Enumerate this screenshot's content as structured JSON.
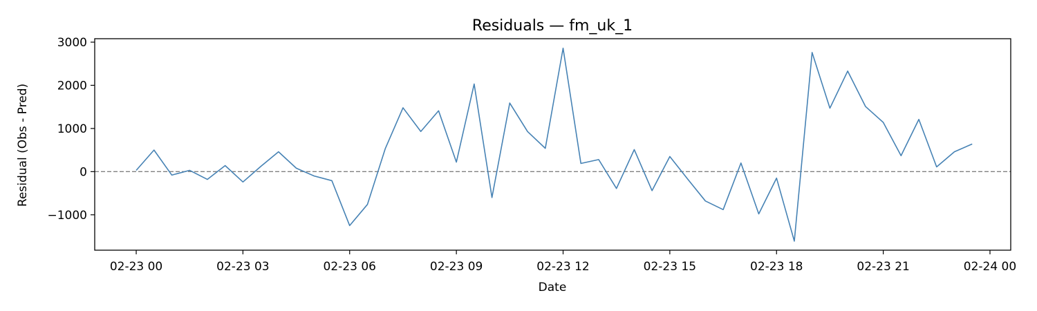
{
  "chart_data": {
    "type": "line",
    "title": "Residuals — fm_uk_1",
    "xlabel": "Date",
    "ylabel": "Residual (Obs - Pred)",
    "x_ticks": [
      "02-23 00",
      "02-23 03",
      "02-23 06",
      "02-23 09",
      "02-23 12",
      "02-23 15",
      "02-23 18",
      "02-23 21",
      "02-24 00"
    ],
    "y_ticks": [
      -1000,
      0,
      1000,
      2000,
      3000
    ],
    "y_tick_labels": [
      "−1000",
      "0",
      "1000",
      "2000",
      "3000"
    ],
    "xlim": [
      "2023-02-22 22:50",
      "2023-02-24 00:35"
    ],
    "ylim": [
      -1820,
      3080
    ],
    "grid": false,
    "legend": "none",
    "colors": {
      "line": "#4682b4",
      "reference": "#808080"
    },
    "reference_line": {
      "y": 0,
      "style": "dashed"
    },
    "series": [
      {
        "x": [
          "02-23 00:00",
          "02-23 00:30",
          "02-23 01:00",
          "02-23 01:30",
          "02-23 02:00",
          "02-23 02:30",
          "02-23 03:00",
          "02-23 03:30",
          "02-23 04:00",
          "02-23 04:30",
          "02-23 05:00",
          "02-23 05:30",
          "02-23 06:00",
          "02-23 06:30",
          "02-23 07:00",
          "02-23 07:30",
          "02-23 08:00",
          "02-23 08:30",
          "02-23 09:00",
          "02-23 09:30",
          "02-23 10:00",
          "02-23 10:30",
          "02-23 11:00",
          "02-23 11:30",
          "02-23 12:00",
          "02-23 12:30",
          "02-23 13:00",
          "02-23 13:30",
          "02-23 14:00",
          "02-23 14:30",
          "02-23 15:00",
          "02-23 15:30",
          "02-23 16:00",
          "02-23 16:30",
          "02-23 17:00",
          "02-23 17:30",
          "02-23 18:00",
          "02-23 18:30",
          "02-23 19:00",
          "02-23 19:30",
          "02-23 20:00",
          "02-23 20:30",
          "02-23 21:00",
          "02-23 21:30",
          "02-23 22:00",
          "02-23 22:30",
          "02-23 23:00",
          "02-23 23:30"
        ],
        "values": [
          30,
          500,
          -80,
          30,
          -180,
          140,
          -240,
          120,
          460,
          80,
          -100,
          -210,
          -1250,
          -760,
          530,
          1480,
          930,
          1410,
          220,
          2030,
          -600,
          1590,
          930,
          540,
          2860,
          190,
          280,
          -390,
          510,
          -440,
          350,
          -170,
          -680,
          -880,
          200,
          -980,
          -150,
          -1610,
          2760,
          1470,
          2330,
          1510,
          1140,
          370,
          1210,
          110,
          460,
          640
        ]
      }
    ]
  }
}
